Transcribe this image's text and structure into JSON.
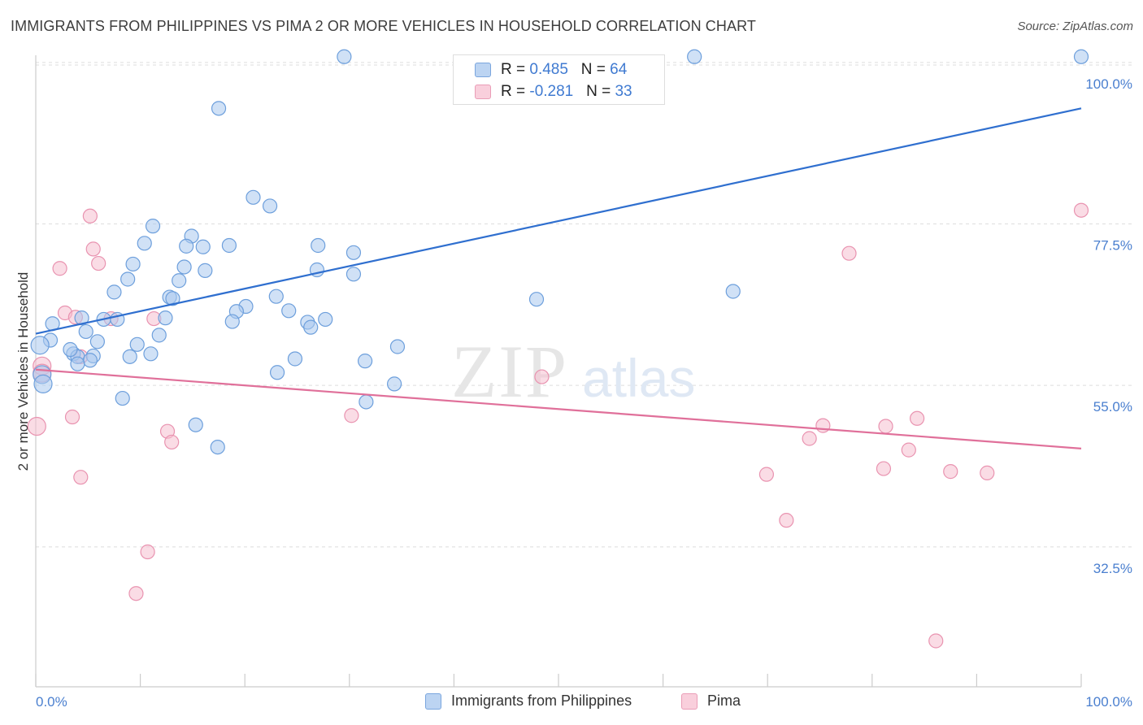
{
  "title": "IMMIGRANTS FROM PHILIPPINES VS PIMA 2 OR MORE VEHICLES IN HOUSEHOLD CORRELATION CHART",
  "source": "Source: ZipAtlas.com",
  "watermark": {
    "zip": "ZIP",
    "atlas": "atlas"
  },
  "legend_top": [
    {
      "r_label": "R = ",
      "r_value": "0.485",
      "n_label": "N = ",
      "n_value": "64"
    },
    {
      "r_label": "R = ",
      "r_value": "-0.281",
      "n_label": "N = ",
      "n_value": "33"
    }
  ],
  "colors": {
    "blue_fill": "#a9c8ef",
    "blue_stroke": "#6d9fdc",
    "blue_line": "#2f6fcf",
    "pink_fill": "#f6bfd0",
    "pink_stroke": "#e993b0",
    "pink_line": "#e0709a",
    "tick_text": "#4a7fcf",
    "grid": "#dddddd"
  },
  "chart_data": {
    "type": "scatter",
    "title": "IMMIGRANTS FROM PHILIPPINES VS PIMA 2 OR MORE VEHICLES IN HOUSEHOLD CORRELATION CHART",
    "xlabel": "",
    "ylabel": "2 or more Vehicles in Household",
    "xlim": [
      0,
      100
    ],
    "ylim": [
      13,
      101
    ],
    "x_tick_labels": [
      "0.0%",
      "100.0%"
    ],
    "y_ticks": [
      32.5,
      55.0,
      77.5,
      100.0
    ],
    "y_tick_labels": [
      "32.5%",
      "55.0%",
      "77.5%",
      "100.0%"
    ],
    "grid": "horizontal dashed",
    "legend_position": "top-center and bottom",
    "series": [
      {
        "name": "Immigrants from Philippines",
        "color": "#6d9fdc",
        "trend": {
          "x": [
            0,
            100
          ],
          "y": [
            62.2,
            93.6
          ]
        },
        "points": [
          [
            29.5,
            100.8
          ],
          [
            63.0,
            100.8
          ],
          [
            100.0,
            100.8
          ],
          [
            17.5,
            93.6
          ],
          [
            20.8,
            81.2
          ],
          [
            22.4,
            80.0
          ],
          [
            11.2,
            77.2
          ],
          [
            14.9,
            75.8
          ],
          [
            10.4,
            74.8
          ],
          [
            14.4,
            74.4
          ],
          [
            16.0,
            74.3
          ],
          [
            18.5,
            74.5
          ],
          [
            27.0,
            74.5
          ],
          [
            30.4,
            73.5
          ],
          [
            9.3,
            71.9
          ],
          [
            14.2,
            71.5
          ],
          [
            16.2,
            71.0
          ],
          [
            26.9,
            71.1
          ],
          [
            30.4,
            70.5
          ],
          [
            13.7,
            69.6
          ],
          [
            8.8,
            69.8
          ],
          [
            7.5,
            68.0
          ],
          [
            66.7,
            68.1
          ],
          [
            23.0,
            67.4
          ],
          [
            12.8,
            67.3
          ],
          [
            13.1,
            67.1
          ],
          [
            47.9,
            67.0
          ],
          [
            20.1,
            66.0
          ],
          [
            24.2,
            65.4
          ],
          [
            19.2,
            65.3
          ],
          [
            18.8,
            63.9
          ],
          [
            12.4,
            64.4
          ],
          [
            4.4,
            64.4
          ],
          [
            6.5,
            64.2
          ],
          [
            7.8,
            64.2
          ],
          [
            26.0,
            63.8
          ],
          [
            27.7,
            64.2
          ],
          [
            26.3,
            63.1
          ],
          [
            1.6,
            63.6
          ],
          [
            4.8,
            62.5
          ],
          [
            11.8,
            62.0
          ],
          [
            1.4,
            61.3
          ],
          [
            5.9,
            61.1
          ],
          [
            9.7,
            60.7
          ],
          [
            34.6,
            60.4
          ],
          [
            3.6,
            59.4
          ],
          [
            4.0,
            59.0
          ],
          [
            11.0,
            59.4
          ],
          [
            5.5,
            59.1
          ],
          [
            5.2,
            58.5
          ],
          [
            31.5,
            58.4
          ],
          [
            24.8,
            58.7
          ],
          [
            23.1,
            56.8
          ],
          [
            0.6,
            56.5
          ],
          [
            34.3,
            55.2
          ],
          [
            0.7,
            55.2
          ],
          [
            8.3,
            53.2
          ],
          [
            31.6,
            52.7
          ],
          [
            15.3,
            49.5
          ],
          [
            17.4,
            46.4
          ],
          [
            4.0,
            58.0
          ],
          [
            9.0,
            59.0
          ],
          [
            3.3,
            60.0
          ],
          [
            0.4,
            60.6
          ]
        ]
      },
      {
        "name": "Pima",
        "color": "#e993b0",
        "trend": {
          "x": [
            0,
            100
          ],
          "y": [
            57.2,
            46.2
          ]
        },
        "points": [
          [
            100.0,
            79.4
          ],
          [
            5.2,
            78.6
          ],
          [
            5.5,
            74.0
          ],
          [
            77.8,
            73.4
          ],
          [
            6.0,
            72.0
          ],
          [
            2.3,
            71.3
          ],
          [
            2.8,
            65.1
          ],
          [
            3.8,
            64.5
          ],
          [
            7.2,
            64.3
          ],
          [
            11.3,
            64.3
          ],
          [
            4.3,
            59.0
          ],
          [
            0.6,
            57.7
          ],
          [
            0.6,
            56.7
          ],
          [
            48.4,
            56.2
          ],
          [
            3.5,
            50.6
          ],
          [
            30.2,
            50.8
          ],
          [
            84.3,
            50.4
          ],
          [
            75.3,
            49.4
          ],
          [
            81.3,
            49.3
          ],
          [
            0.1,
            49.3
          ],
          [
            12.6,
            48.6
          ],
          [
            13.0,
            47.1
          ],
          [
            74.0,
            47.6
          ],
          [
            83.5,
            46.0
          ],
          [
            87.5,
            43.0
          ],
          [
            81.1,
            43.4
          ],
          [
            91.0,
            42.8
          ],
          [
            4.3,
            42.2
          ],
          [
            69.9,
            42.6
          ],
          [
            71.8,
            36.2
          ],
          [
            10.7,
            31.8
          ],
          [
            9.6,
            26.0
          ],
          [
            86.1,
            19.4
          ]
        ]
      }
    ]
  }
}
